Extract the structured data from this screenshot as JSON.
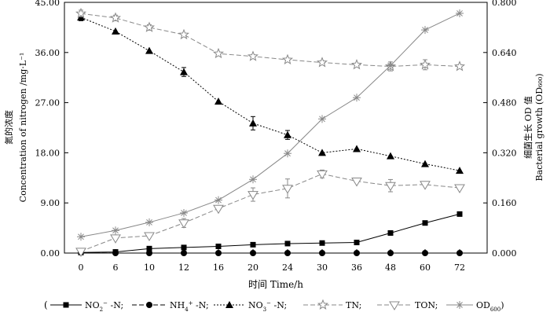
{
  "chart_data": {
    "type": "line",
    "x_categories": [
      "0",
      "6",
      "10",
      "12",
      "16",
      "20",
      "24",
      "30",
      "36",
      "48",
      "60",
      "72"
    ],
    "xlabel": "时间 Time/h",
    "ylabel_left": "Concentration of nitrogen /mg·L⁻¹",
    "ylabel_left_cn": "氮的浓度",
    "ylabel_right": "Bacterial growth (OD₆₀₀)",
    "ylabel_right_cn": "细菌生长 OD 值",
    "y_left": {
      "min": 0,
      "max": 45,
      "ticks": [
        0,
        9,
        18,
        27,
        36,
        45
      ],
      "tick_labels": [
        "0.00",
        "9.00",
        "18.00",
        "27.00",
        "36.00",
        "45.00"
      ]
    },
    "y_right": {
      "min": 0,
      "max": 0.8,
      "ticks": [
        0,
        0.16,
        0.32,
        0.48,
        0.64,
        0.8
      ],
      "tick_labels": [
        "0.000",
        "0.160",
        "0.320",
        "0.480",
        "0.640",
        "0.800"
      ]
    },
    "series": [
      {
        "name": "NO₂⁻ -N",
        "label": "NO",
        "label_sub": "2",
        "label_sup": "−",
        "label_suffix": " -N;",
        "axis": "left",
        "marker": "square",
        "dash": "solid",
        "color": "#000000",
        "values": [
          0.1,
          0.2,
          0.8,
          1.0,
          1.2,
          1.5,
          1.7,
          1.8,
          1.9,
          3.6,
          5.4,
          7.0
        ],
        "errors": [
          0,
          0,
          0,
          0,
          0,
          0,
          0,
          0,
          0,
          0,
          0,
          0
        ]
      },
      {
        "name": "NH₄⁺ -N",
        "label": "NH",
        "label_sub": "4",
        "label_sup": "+",
        "label_suffix": " -N;",
        "axis": "left",
        "marker": "circle",
        "dash": "dashed",
        "color": "#000000",
        "values": [
          0.1,
          0.0,
          0.0,
          0.0,
          0.0,
          0.0,
          0.0,
          0.0,
          0.0,
          0.0,
          0.0,
          0.0
        ],
        "errors": [
          0,
          0,
          0,
          0,
          0,
          0,
          0,
          0,
          0,
          0,
          0,
          0
        ]
      },
      {
        "name": "NO₃⁻ -N",
        "label": "NO",
        "label_sub": "3",
        "label_sup": "−",
        "label_suffix": " -N;",
        "axis": "left",
        "marker": "triangle",
        "dash": "dotted",
        "color": "#000000",
        "values": [
          42.3,
          39.8,
          36.3,
          32.5,
          27.2,
          23.3,
          21.2,
          18.0,
          18.7,
          17.4,
          16.0,
          14.8
        ],
        "errors": [
          0.6,
          0,
          0,
          0.8,
          0,
          1.2,
          0.8,
          0,
          0,
          0,
          0,
          0
        ]
      },
      {
        "name": "TN",
        "label": "TN;",
        "label_sub": "",
        "label_sup": "",
        "label_suffix": "",
        "axis": "left",
        "marker": "star",
        "dash": "dashed",
        "color": "#888888",
        "values": [
          43.0,
          42.2,
          40.5,
          39.2,
          35.8,
          35.3,
          34.7,
          34.2,
          33.8,
          33.5,
          33.8,
          33.5
        ],
        "errors": [
          0.6,
          0.5,
          0.5,
          0,
          0,
          0,
          0,
          0,
          0,
          0.8,
          0.9,
          0
        ]
      },
      {
        "name": "TON",
        "label": "TON;",
        "label_sub": "",
        "label_sup": "",
        "label_suffix": "",
        "axis": "left",
        "marker": "triangle-down",
        "dash": "dashed",
        "color": "#888888",
        "values": [
          0.3,
          2.7,
          3.1,
          5.4,
          8.0,
          10.5,
          11.6,
          14.2,
          12.9,
          12.1,
          12.3,
          11.7
        ],
        "errors": [
          0,
          0,
          0,
          0.8,
          0,
          1.2,
          1.7,
          0.7,
          0,
          1.1,
          0,
          0
        ]
      },
      {
        "name": "OD600",
        "label": "OD",
        "label_sub": "600",
        "label_sup": "",
        "label_suffix": ")",
        "axis": "right",
        "marker": "asterisk",
        "dash": "solid",
        "color": "#888888",
        "values": [
          0.052,
          0.072,
          0.098,
          0.128,
          0.169,
          0.235,
          0.318,
          0.428,
          0.496,
          0.598,
          0.712,
          0.765
        ],
        "errors": [
          0,
          0,
          0,
          0,
          0,
          0,
          0,
          0,
          0,
          0,
          0,
          0
        ]
      }
    ],
    "legend": {
      "position": "bottom",
      "open": "("
    }
  }
}
